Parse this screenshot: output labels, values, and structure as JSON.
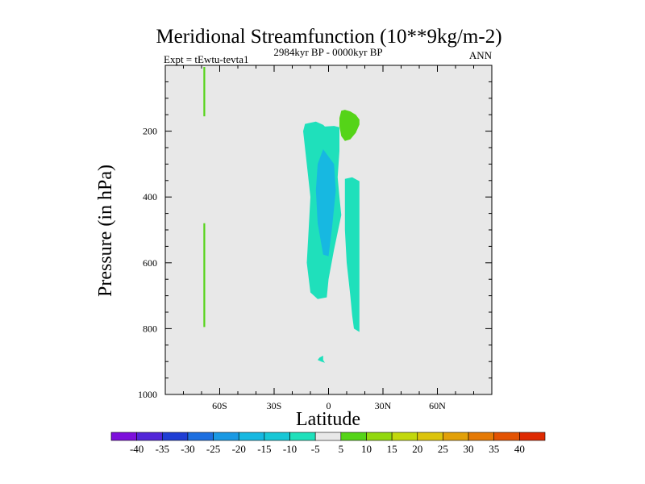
{
  "chart_data": {
    "type": "contour",
    "title": "Meridional Streamfunction (10**9kg/m-2)",
    "subtitle": "2984kyr BP - 0000kyr BP",
    "left_label": "Expt = tEwtu-tevta1",
    "right_label": "ANN",
    "xlabel": "Latitude",
    "ylabel": "Pressure (in hPa)",
    "xlim": [
      -90,
      90
    ],
    "ylim": [
      0,
      1000
    ],
    "y_inverted": true,
    "x_ticks": [
      {
        "value": -60,
        "label": "60S"
      },
      {
        "value": -30,
        "label": "30S"
      },
      {
        "value": 0,
        "label": "0"
      },
      {
        "value": 30,
        "label": "30N"
      },
      {
        "value": 60,
        "label": "60N"
      }
    ],
    "y_ticks": [
      {
        "value": 200,
        "label": "200"
      },
      {
        "value": 400,
        "label": "400"
      },
      {
        "value": 600,
        "label": "600"
      },
      {
        "value": 800,
        "label": "800"
      },
      {
        "value": 1000,
        "label": "1000"
      }
    ],
    "background_color": "#e8e8e8",
    "colorbar": {
      "labels": [
        "-40",
        "-35",
        "-30",
        "-25",
        "-20",
        "-15",
        "-10",
        "-5",
        "5",
        "10",
        "15",
        "20",
        "25",
        "30",
        "35",
        "40"
      ],
      "colors": [
        "#7d10db",
        "#5226d8",
        "#1f3ed4",
        "#1d6fe0",
        "#1a99e3",
        "#17b8e1",
        "#18c7d6",
        "#1fe0bb",
        "#e8e8e8",
        "#55d418",
        "#92d80f",
        "#c2d80d",
        "#dcc40c",
        "#e2a008",
        "#e57a06",
        "#e35303",
        "#de2a02"
      ]
    },
    "regions": [
      {
        "name": "tropical-cell-outer",
        "level": "-10 to -5",
        "color": "#1fe0bb",
        "points": [
          [
            -13,
            178
          ],
          [
            -7,
            171
          ],
          [
            -3,
            181
          ],
          [
            -2,
            186
          ],
          [
            3,
            184
          ],
          [
            6,
            188
          ],
          [
            6,
            260
          ],
          [
            5,
            340
          ],
          [
            6,
            400
          ],
          [
            7,
            455
          ],
          [
            3,
            560
          ],
          [
            0,
            650
          ],
          [
            -1,
            705
          ],
          [
            -6,
            710
          ],
          [
            -10,
            690
          ],
          [
            -12,
            600
          ],
          [
            -11,
            500
          ],
          [
            -10,
            400
          ],
          [
            -12,
            300
          ],
          [
            -14,
            200
          ]
        ]
      },
      {
        "name": "tropical-cell-core",
        "level": "-15 to -10",
        "color": "#17b8e1",
        "points": [
          [
            -3,
            255
          ],
          [
            3,
            300
          ],
          [
            4,
            380
          ],
          [
            2,
            490
          ],
          [
            0,
            580
          ],
          [
            -3,
            575
          ],
          [
            -6,
            480
          ],
          [
            -7,
            380
          ],
          [
            -6,
            300
          ]
        ]
      },
      {
        "name": "northern-strip",
        "level": "-10 to -5",
        "color": "#1fe0bb",
        "points": [
          [
            9,
            345
          ],
          [
            13,
            340
          ],
          [
            17,
            352
          ],
          [
            17,
            810
          ],
          [
            14,
            800
          ],
          [
            13,
            760
          ],
          [
            12,
            700
          ],
          [
            10,
            600
          ],
          [
            9,
            500
          ],
          [
            9,
            420
          ]
        ]
      },
      {
        "name": "upper-blob-positive",
        "level": "5 to 10",
        "color": "#55d418",
        "points": [
          [
            7,
            138
          ],
          [
            9,
            135
          ],
          [
            12,
            140
          ],
          [
            15,
            150
          ],
          [
            17,
            165
          ],
          [
            17,
            180
          ],
          [
            15,
            205
          ],
          [
            12,
            225
          ],
          [
            9,
            230
          ],
          [
            7,
            215
          ],
          [
            6,
            185
          ],
          [
            6,
            160
          ]
        ]
      },
      {
        "name": "surface-spot",
        "level": "-10 to -5",
        "color": "#1fe0bb",
        "points": [
          [
            -5,
            888
          ],
          [
            -3,
            882
          ],
          [
            -3,
            895
          ],
          [
            -2,
            904
          ],
          [
            -4,
            900
          ],
          [
            -6,
            895
          ]
        ]
      },
      {
        "name": "southern-strip-upper",
        "level": "5 to 10",
        "color": "#55d418",
        "points": [
          [
            -69,
            5
          ],
          [
            -68,
            5
          ],
          [
            -68,
            155
          ],
          [
            -69,
            155
          ]
        ]
      },
      {
        "name": "southern-strip-lower",
        "level": "5 to 10",
        "color": "#55d418",
        "points": [
          [
            -69,
            480
          ],
          [
            -68,
            480
          ],
          [
            -68,
            795
          ],
          [
            -69,
            795
          ]
        ]
      }
    ]
  }
}
